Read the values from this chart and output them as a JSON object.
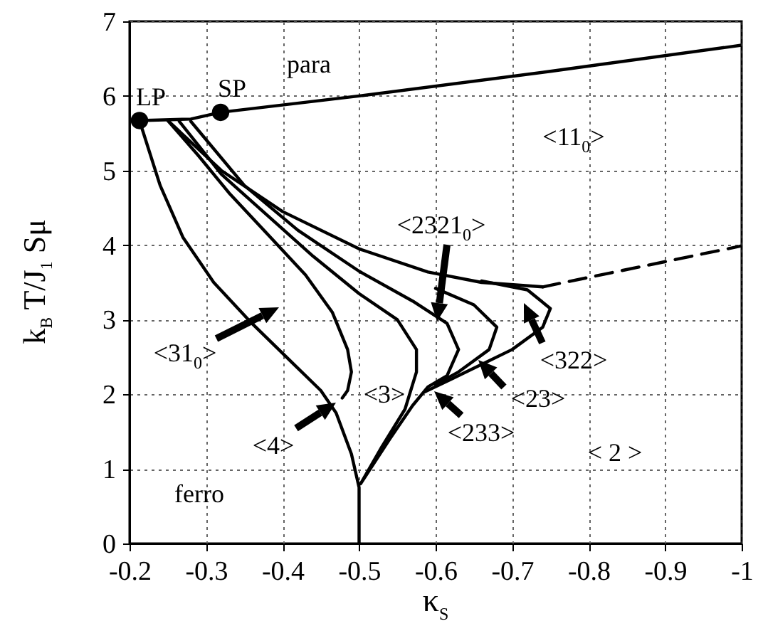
{
  "chart_data": {
    "type": "line",
    "xlabel": "κ$_{S}$",
    "ylabel": "k$_{B}$ T/J$_{1}$ Sμ",
    "xlim": [
      -0.2,
      -1
    ],
    "xticks": [
      -0.2,
      -0.3,
      -0.4,
      -0.5,
      -0.6,
      -0.7,
      -0.8,
      -0.9,
      -1
    ],
    "ylim": [
      0,
      7
    ],
    "yticks": [
      0,
      1,
      2,
      3,
      4,
      5,
      6,
      7
    ],
    "grid": true,
    "marker": "none",
    "line_style": "solid",
    "series": [
      {
        "color": "#000000",
        "x": [
          -1,
          -0.75,
          -0.5,
          -0.319,
          -0.28,
          -0.213,
          -0.24,
          -0.27,
          -0.31,
          -0.36,
          -0.41,
          -0.45,
          -0.47,
          -0.49,
          -0.5,
          -0.5
        ],
        "values": [
          6.68,
          6.33,
          6.0,
          5.78,
          5.69,
          5.67,
          4.8,
          4.1,
          3.5,
          2.95,
          2.45,
          2.05,
          1.75,
          1.2,
          0.75,
          0
        ]
      },
      {
        "color": "#000000",
        "x": [
          -0.478,
          -0.485,
          -0.49,
          -0.485,
          -0.465,
          -0.43,
          -0.38,
          -0.33,
          -0.29,
          -0.25,
          -0.32,
          -0.4,
          -0.5,
          -0.59,
          -0.66,
          -0.74
        ],
        "values": [
          1.95,
          2.05,
          2.3,
          2.6,
          3.1,
          3.6,
          4.15,
          4.7,
          5.2,
          5.67,
          5.0,
          4.45,
          3.95,
          3.64,
          3.5,
          3.44
        ]
      },
      {
        "color": "#000000",
        "x": [
          -0.265,
          -0.32,
          -0.38,
          -0.44,
          -0.5,
          -0.55,
          -0.575,
          -0.575,
          -0.56,
          -0.53,
          -0.502,
          -0.54,
          -0.57,
          -0.59,
          -0.615,
          -0.63,
          -0.615,
          -0.57,
          -0.5,
          -0.42,
          -0.35,
          -0.28
        ],
        "values": [
          5.66,
          4.95,
          4.4,
          3.85,
          3.35,
          3.0,
          2.6,
          2.3,
          1.8,
          1.3,
          0.8,
          1.4,
          1.85,
          2.1,
          2.25,
          2.6,
          2.95,
          3.25,
          3.65,
          4.2,
          4.8,
          5.66
        ]
      },
      {
        "color": "#000000",
        "x": [
          -0.6,
          -0.65,
          -0.68,
          -0.67,
          -0.63,
          -0.6
        ],
        "values": [
          3.42,
          3.2,
          2.9,
          2.6,
          2.3,
          2.13
        ]
      },
      {
        "color": "#000000",
        "x": [
          -0.66,
          -0.72,
          -0.75,
          -0.74,
          -0.7,
          -0.62,
          -0.585
        ],
        "values": [
          3.52,
          3.4,
          3.15,
          2.9,
          2.6,
          2.2,
          2.03
        ]
      },
      {
        "color": "#000000",
        "line_style": "dashed",
        "x": [
          -0.74,
          -1
        ],
        "values": [
          3.44,
          3.99
        ]
      },
      {
        "type": "scatter",
        "color": "#000000",
        "marker": "circle",
        "x": [
          -0.213,
          -0.319
        ],
        "values": [
          5.67,
          5.78
        ]
      }
    ],
    "annotations": [
      "para",
      {
        "text": "LP",
        "x": -0.213,
        "y": 5.67
      },
      {
        "text": "SP",
        "x": -0.319,
        "y": 5.78
      },
      "<11$_{0}$>",
      "<2321$_{0}$>",
      "<31$_{0}$>",
      "<4>",
      "<3>",
      "<233>",
      "<23>",
      "<322>",
      "< 2 >",
      "ferro"
    ]
  }
}
